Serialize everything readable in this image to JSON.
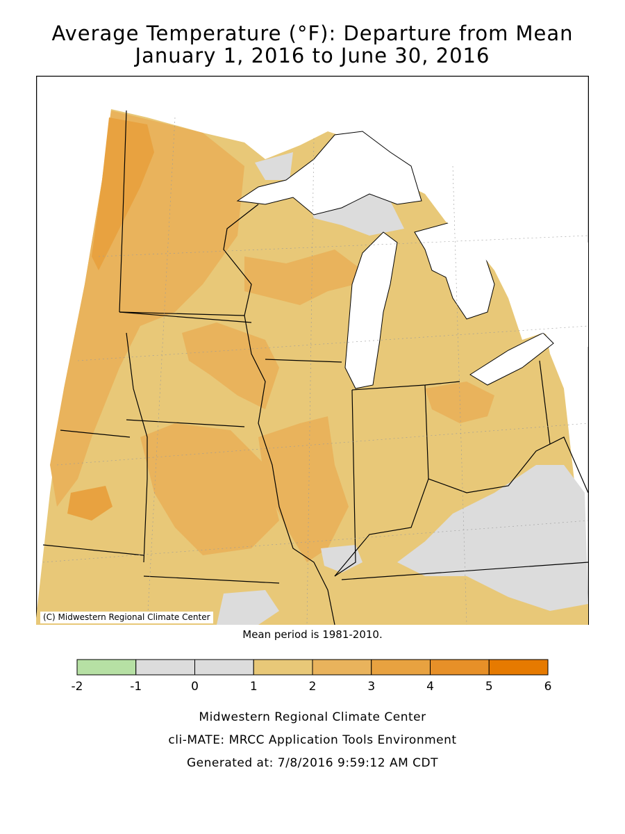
{
  "title_line1": "Average Temperature (°F): Departure from Mean",
  "title_line2": "January 1, 2016 to June 30, 2016",
  "copyright": "(C) Midwestern Regional Climate Center",
  "mean_period": "Mean period is 1981-2010.",
  "legend": {
    "ticks": [
      "-2",
      "-1",
      "0",
      "1",
      "2",
      "3",
      "4",
      "5",
      "6"
    ],
    "colors": [
      "#b6e0a4",
      "#dcdcdc",
      "#dcdcdc",
      "#e8c878",
      "#e9b35c",
      "#e8a240",
      "#e79028",
      "#e67a00"
    ]
  },
  "colors": {
    "lakes": "#ffffff",
    "near_normal": "#dcdcdc",
    "plus_1_2": "#e8c878",
    "plus_2_3": "#e9b35c",
    "plus_3_4": "#e8a240",
    "plus_4_5": "#e79028"
  },
  "footer_line1": "Midwestern Regional Climate Center",
  "footer_line2": "cli-MATE: MRCC Application Tools Environment",
  "footer_line3": "Generated at: 7/8/2016 9:59:12 AM CDT"
}
